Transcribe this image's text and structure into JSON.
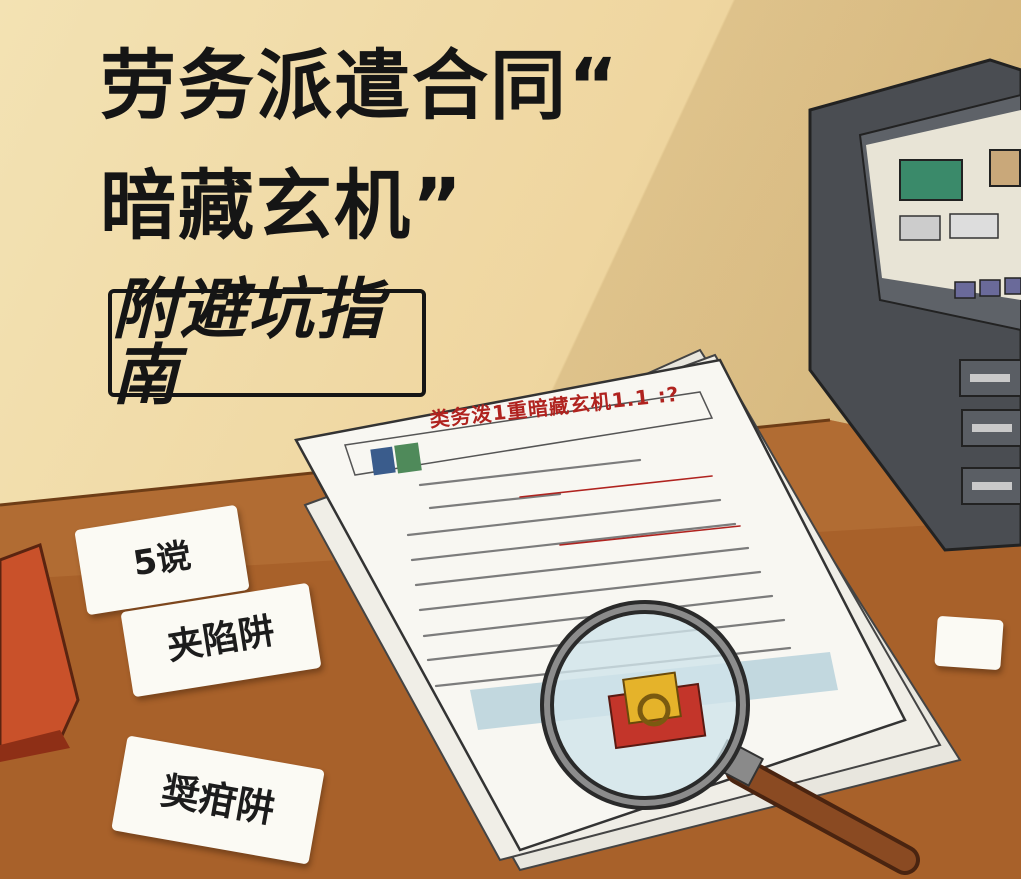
{
  "poster": {
    "title_line1": "劳务派遣合同“",
    "title_line2": "暗藏玄机”",
    "subtitle": "附避坑指南"
  },
  "document": {
    "header_text": "类务泼1重暗藏玄机1.1 :?"
  },
  "cards": {
    "card1": "5谠",
    "card2": "夹陷阱",
    "card3": "奨疳阱"
  },
  "colors": {
    "wall": "#efd9a4",
    "desk": "#a8612a",
    "title": "#151515",
    "doc_header": "#b0231f",
    "cabinet": "#4a4d52"
  }
}
